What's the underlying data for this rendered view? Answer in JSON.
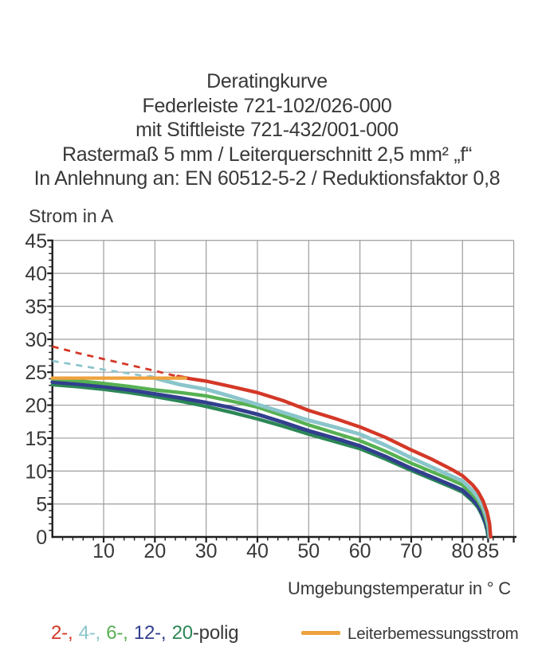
{
  "title": {
    "lines": [
      "Deratingkurve",
      "Federleiste 721-102/026-000",
      "mit Stiftleiste 721-432/001-000",
      "Rastermaß 5 mm / Leiterquerschnitt 2,5 mm² „f“",
      "In Anlehnung an: EN 60512-5-2 / Reduktionsfaktor 0,8"
    ]
  },
  "axes": {
    "y_title": "Strom in A",
    "x_title": "Umgebungstemperatur in ° C"
  },
  "legend": {
    "pole_segments": [
      {
        "text": "2-,",
        "color": "#d43827"
      },
      {
        "text": "4-,",
        "color": "#8ac5cb"
      },
      {
        "text": "6-,",
        "color": "#57b152"
      },
      {
        "text": "12-,",
        "color": "#323f8e"
      },
      {
        "text": "20",
        "color": "#2c8756"
      }
    ],
    "suffix": "-polig",
    "suffix_color": "#383838",
    "rated_label": "Leiterbemessungsstrom",
    "rated_color": "#eea23f"
  },
  "chart_data": {
    "type": "line",
    "title": "Deratingkurve",
    "xlabel": "Umgebungstemperatur in ° C",
    "ylabel": "Strom in A",
    "xlim": [
      0,
      90
    ],
    "ylim": [
      0,
      45
    ],
    "x_grid_step": 10,
    "y_grid_step": 5,
    "x_minor_step": 2,
    "y_minor_step": 1,
    "x_tick_labels": [
      10,
      20,
      30,
      40,
      50,
      60,
      70,
      80,
      85
    ],
    "y_tick_labels": [
      0,
      5,
      10,
      15,
      20,
      25,
      30,
      35,
      40,
      45
    ],
    "grid_color": "#9d9d9d",
    "axis_color": "#1e1e1e",
    "series": [
      {
        "name": "20-polig",
        "color": "#2c8756",
        "width": 4.4,
        "style": "solid",
        "points": [
          [
            0,
            23.1
          ],
          [
            5,
            22.8
          ],
          [
            10,
            22.4
          ],
          [
            15,
            21.9
          ],
          [
            20,
            21.3
          ],
          [
            25,
            20.6
          ],
          [
            30,
            19.8
          ],
          [
            35,
            18.9
          ],
          [
            40,
            17.9
          ],
          [
            45,
            16.8
          ],
          [
            50,
            15.6
          ],
          [
            55,
            14.5
          ],
          [
            60,
            13.4
          ],
          [
            65,
            11.8
          ],
          [
            70,
            10.1
          ],
          [
            74,
            8.8
          ],
          [
            78,
            7.5
          ],
          [
            80,
            6.8
          ],
          [
            82,
            5.4
          ],
          [
            83,
            4.5
          ],
          [
            83.8,
            3.3
          ],
          [
            84.4,
            2.1
          ],
          [
            84.8,
            1.0
          ],
          [
            85.0,
            0
          ]
        ]
      },
      {
        "name": "12-polig",
        "color": "#323f8e",
        "width": 4.8,
        "style": "solid",
        "points": [
          [
            0,
            23.5
          ],
          [
            5,
            23.2
          ],
          [
            10,
            22.8
          ],
          [
            15,
            22.3
          ],
          [
            20,
            21.7
          ],
          [
            25,
            21.1
          ],
          [
            30,
            20.4
          ],
          [
            35,
            19.6
          ],
          [
            40,
            18.6
          ],
          [
            45,
            17.4
          ],
          [
            50,
            16.1
          ],
          [
            55,
            15.0
          ],
          [
            60,
            13.8
          ],
          [
            65,
            12.2
          ],
          [
            70,
            10.4
          ],
          [
            74,
            9.1
          ],
          [
            78,
            7.8
          ],
          [
            80,
            7.1
          ],
          [
            82,
            5.7
          ],
          [
            83,
            4.8
          ],
          [
            83.8,
            3.6
          ],
          [
            84.5,
            2.2
          ],
          [
            84.9,
            1.1
          ],
          [
            85.1,
            0
          ]
        ]
      },
      {
        "name": "6-polig",
        "color": "#57b152",
        "width": 4.4,
        "style": "solid",
        "points": [
          [
            0,
            24.0
          ],
          [
            5,
            23.7
          ],
          [
            10,
            23.3
          ],
          [
            15,
            22.85
          ],
          [
            20,
            22.3
          ],
          [
            25,
            21.9
          ],
          [
            30,
            21.4
          ],
          [
            35,
            20.6
          ],
          [
            40,
            19.7
          ],
          [
            45,
            18.4
          ],
          [
            50,
            17.0
          ],
          [
            55,
            15.8
          ],
          [
            60,
            14.6
          ],
          [
            65,
            13.0
          ],
          [
            70,
            11.2
          ],
          [
            74,
            9.9
          ],
          [
            78,
            8.6
          ],
          [
            80,
            7.9
          ],
          [
            82,
            6.4
          ],
          [
            83,
            5.5
          ],
          [
            84,
            4.1
          ],
          [
            84.6,
            2.7
          ],
          [
            85.0,
            1.4
          ],
          [
            85.2,
            0
          ]
        ]
      },
      {
        "name": "4-polig-projection",
        "color": "#8ac5cb",
        "width": 2.7,
        "style": "dashed",
        "points": [
          [
            0,
            26.7
          ],
          [
            5,
            26.05
          ],
          [
            10,
            25.4
          ],
          [
            15,
            24.8
          ],
          [
            19,
            24.3
          ]
        ]
      },
      {
        "name": "4-polig",
        "color": "#8ac5cb",
        "width": 4.8,
        "style": "solid",
        "points": [
          [
            19,
            24.3
          ],
          [
            22,
            23.7
          ],
          [
            25,
            23.1
          ],
          [
            30,
            22.4
          ],
          [
            35,
            21.3
          ],
          [
            40,
            20.1
          ],
          [
            45,
            18.9
          ],
          [
            50,
            17.7
          ],
          [
            55,
            16.7
          ],
          [
            60,
            15.6
          ],
          [
            65,
            13.9
          ],
          [
            70,
            12.0
          ],
          [
            74,
            10.6
          ],
          [
            78,
            9.2
          ],
          [
            80,
            8.5
          ],
          [
            82,
            7.0
          ],
          [
            83,
            6.0
          ],
          [
            84,
            4.6
          ],
          [
            84.7,
            3.1
          ],
          [
            85.1,
            1.6
          ],
          [
            85.3,
            0
          ]
        ]
      },
      {
        "name": "2-polig-projection",
        "color": "#d43827",
        "width": 2.8,
        "style": "dashed",
        "points": [
          [
            0,
            28.9
          ],
          [
            5,
            27.9
          ],
          [
            10,
            27.0
          ],
          [
            15,
            26.1
          ],
          [
            20,
            25.2
          ],
          [
            24.5,
            24.35
          ]
        ]
      },
      {
        "name": "2-polig",
        "color": "#d43827",
        "width": 4.4,
        "style": "solid",
        "points": [
          [
            24.5,
            24.35
          ],
          [
            27,
            24.0
          ],
          [
            30,
            23.65
          ],
          [
            35,
            22.8
          ],
          [
            40,
            21.9
          ],
          [
            45,
            20.7
          ],
          [
            50,
            19.2
          ],
          [
            55,
            18.0
          ],
          [
            60,
            16.7
          ],
          [
            65,
            15.1
          ],
          [
            70,
            13.2
          ],
          [
            74,
            11.8
          ],
          [
            78,
            10.2
          ],
          [
            80,
            9.3
          ],
          [
            82,
            7.9
          ],
          [
            83,
            6.9
          ],
          [
            84,
            5.5
          ],
          [
            84.8,
            3.8
          ],
          [
            85.3,
            2.0
          ],
          [
            85.5,
            0
          ]
        ]
      },
      {
        "name": "Leiterbemessungsstrom",
        "color": "#eea23f",
        "width": 4.2,
        "style": "solid",
        "points": [
          [
            0,
            24.1
          ],
          [
            26,
            24.1
          ]
        ]
      }
    ]
  }
}
